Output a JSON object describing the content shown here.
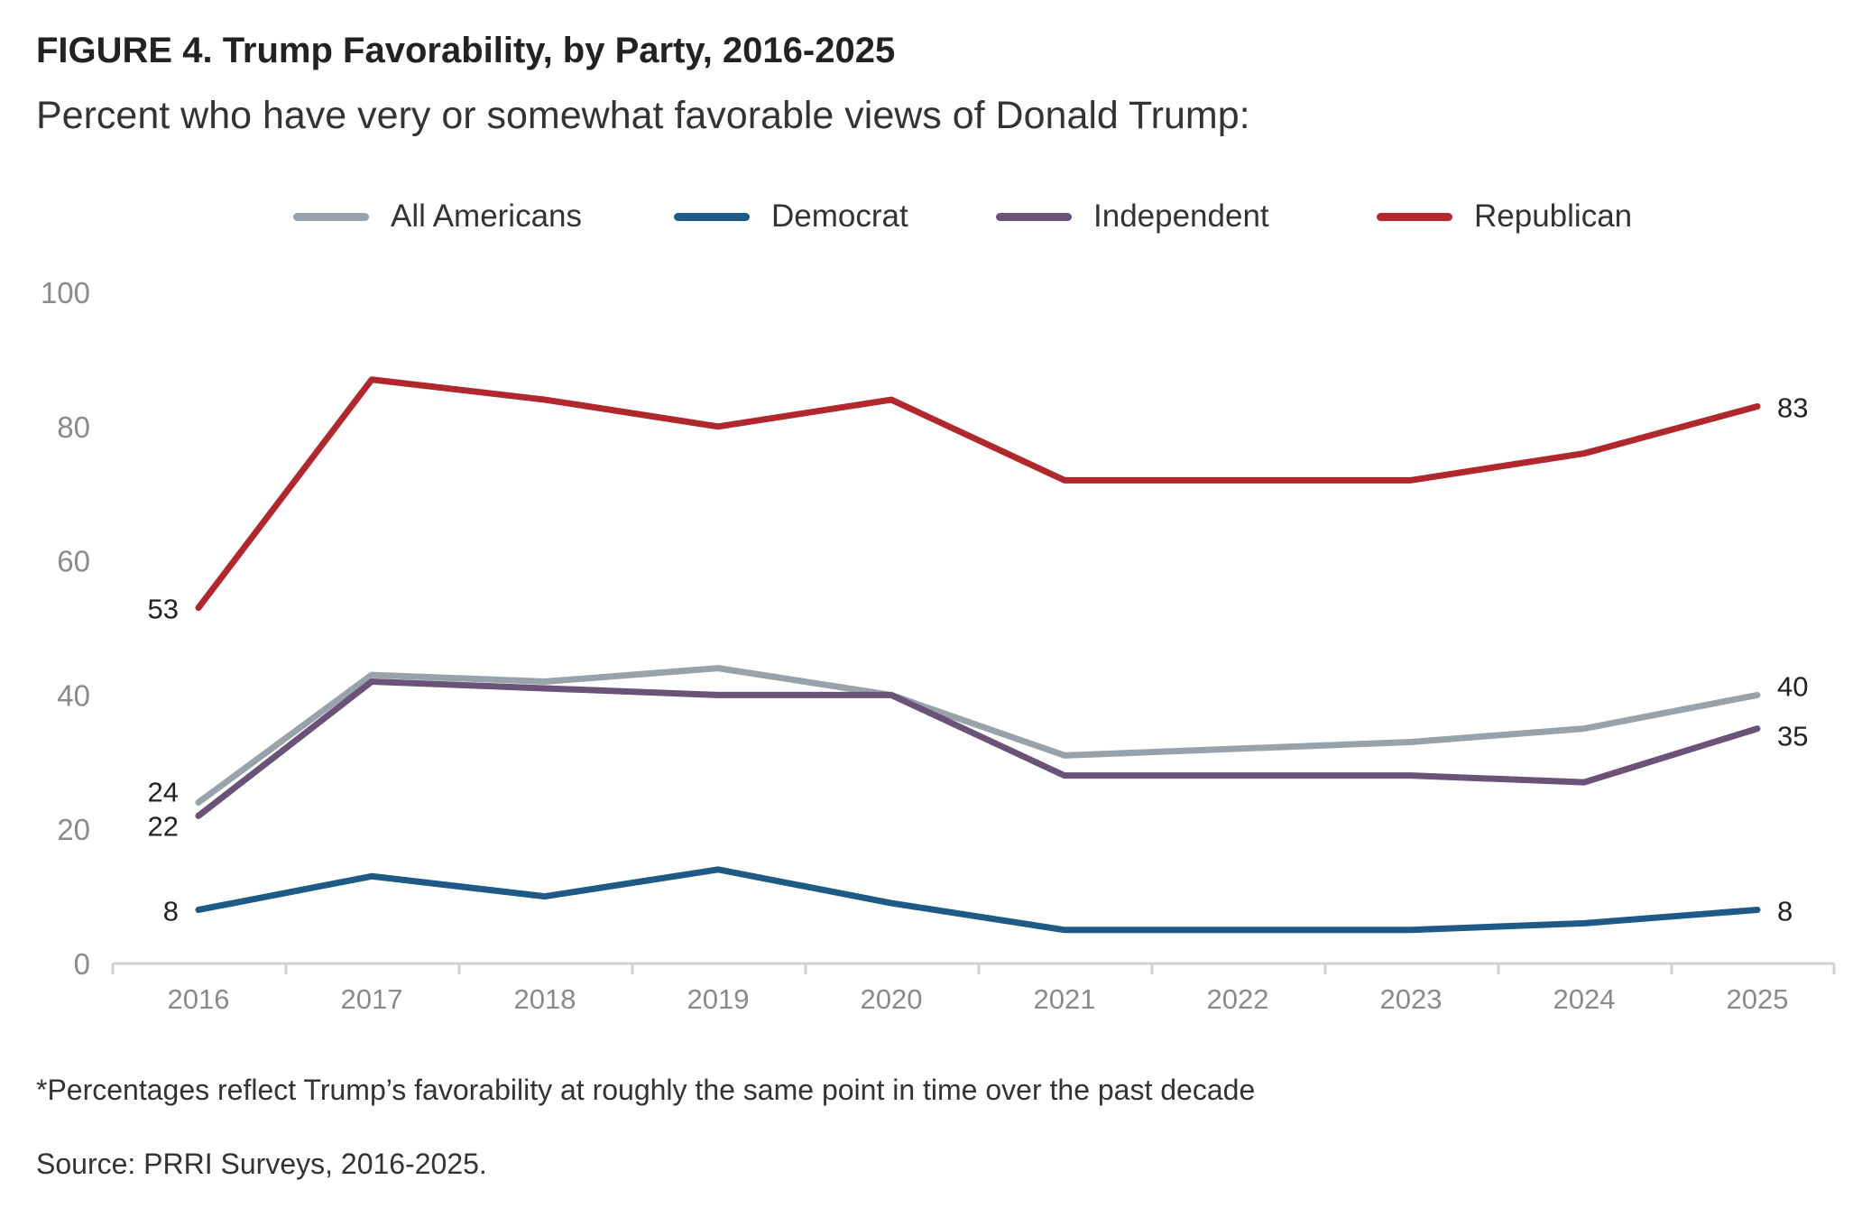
{
  "figure": {
    "title": "FIGURE 4.  Trump Favorability, by Party, 2016-2025",
    "subtitle": "Percent who have very or somewhat favorable views of Donald Trump:",
    "note": "*Percentages reflect Trump’s favorability at roughly the same point in time over the past decade",
    "source": "Source: PRRI Surveys, 2016-2025."
  },
  "chart_data": {
    "type": "line",
    "title": "FIGURE 4.  Trump Favorability, by Party, 2016-2025",
    "subtitle": "Percent who have very or somewhat favorable views of Donald Trump:",
    "xlabel": "",
    "ylabel": "",
    "ylim": [
      0,
      100
    ],
    "yticks": [
      0,
      20,
      40,
      60,
      80,
      100
    ],
    "grid": false,
    "legend_position": "top",
    "categories": [
      "2016",
      "2017",
      "2018",
      "2019",
      "2020",
      "2021",
      "2022",
      "2023",
      "2024",
      "2025"
    ],
    "series": [
      {
        "name": "All Americans",
        "color": "#98a2aa",
        "values": [
          24,
          43,
          42,
          44,
          40,
          31,
          32,
          33,
          35,
          40
        ],
        "label_first": "24",
        "label_last": "40"
      },
      {
        "name": "Democrat",
        "color": "#1d5a85",
        "values": [
          8,
          13,
          10,
          14,
          9,
          5,
          5,
          5,
          6,
          8
        ],
        "label_first": "8",
        "label_last": "8"
      },
      {
        "name": "Independent",
        "color": "#6a5279",
        "values": [
          22,
          42,
          41,
          40,
          40,
          28,
          28,
          28,
          27,
          35
        ],
        "label_first": "22",
        "label_last": "35"
      },
      {
        "name": "Republican",
        "color": "#b0272d",
        "values": [
          53,
          87,
          84,
          80,
          84,
          72,
          72,
          72,
          76,
          83
        ],
        "label_first": "53",
        "label_last": "83"
      }
    ]
  }
}
